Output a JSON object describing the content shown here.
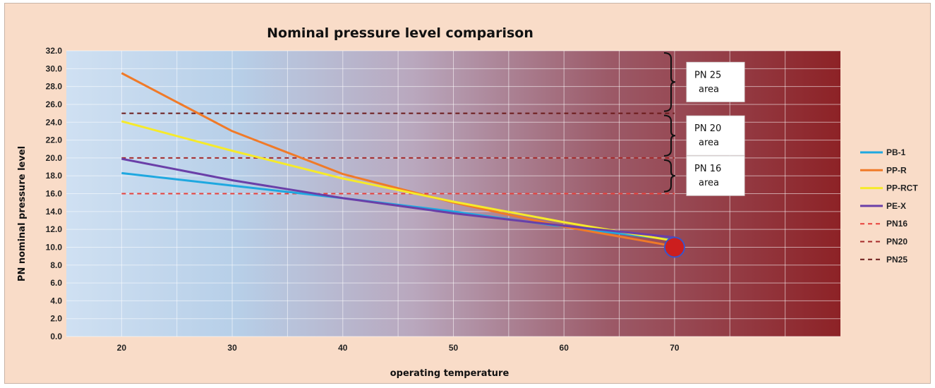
{
  "chart_data": {
    "type": "line",
    "title": "Nominal pressure level comparison",
    "xlabel": "operating temperature",
    "ylabel": "PN nominal pressure level",
    "xlim": [
      15,
      85
    ],
    "ylim": [
      0,
      32
    ],
    "x_ticks": [
      "20",
      "30",
      "40",
      "50",
      "60",
      "70"
    ],
    "y_ticks": [
      "0.0",
      "2.0",
      "4.0",
      "6.0",
      "8.0",
      "10.0",
      "12.0",
      "14.0",
      "16.0",
      "18.0",
      "20.0",
      "22.0",
      "24.0",
      "26.0",
      "28.0",
      "30.0",
      "32.0"
    ],
    "grid": true,
    "legend_position": "right",
    "series": [
      {
        "name": "PB-1",
        "color": "#1fa8e0",
        "dash": false,
        "x": [
          20,
          30,
          40,
          50,
          60,
          70
        ],
        "y": [
          18.3,
          16.9,
          15.5,
          14.0,
          12.3,
          10.8
        ]
      },
      {
        "name": "PP-R",
        "color": "#f07a28",
        "dash": false,
        "x": [
          20,
          30,
          40,
          50,
          60,
          70
        ],
        "y": [
          29.5,
          23.0,
          18.2,
          15.0,
          12.3,
          10.1
        ]
      },
      {
        "name": "PP-RCT",
        "color": "#f6ea2a",
        "dash": false,
        "x": [
          20,
          30,
          40,
          50,
          60,
          70
        ],
        "y": [
          24.1,
          20.8,
          17.7,
          15.1,
          12.8,
          10.7
        ]
      },
      {
        "name": "PE-X",
        "color": "#6a3fa8",
        "dash": false,
        "x": [
          20,
          30,
          40,
          50,
          60,
          70
        ],
        "y": [
          19.9,
          17.5,
          15.5,
          13.8,
          12.4,
          11.1
        ]
      },
      {
        "name": "PN16",
        "color": "#e8403a",
        "dash": true,
        "x": [
          20,
          70
        ],
        "y": [
          16,
          16
        ]
      },
      {
        "name": "PN20",
        "color": "#a52a2a",
        "dash": true,
        "x": [
          20,
          70
        ],
        "y": [
          20,
          20
        ]
      },
      {
        "name": "PN25",
        "color": "#6b1a1a",
        "dash": true,
        "x": [
          20,
          70
        ],
        "y": [
          25,
          25
        ]
      }
    ],
    "annotations": [
      {
        "line1": "PN 25",
        "line2": "area",
        "y_range": [
          25,
          32
        ]
      },
      {
        "line1": "PN 20",
        "line2": "area",
        "y_range": [
          20,
          25
        ]
      },
      {
        "line1": "PN 16",
        "line2": "area",
        "y_range": [
          16,
          20
        ]
      }
    ],
    "marker": {
      "x": 70,
      "y": 10,
      "color": "#cc1e1e",
      "edge": "#3a55c8"
    }
  }
}
